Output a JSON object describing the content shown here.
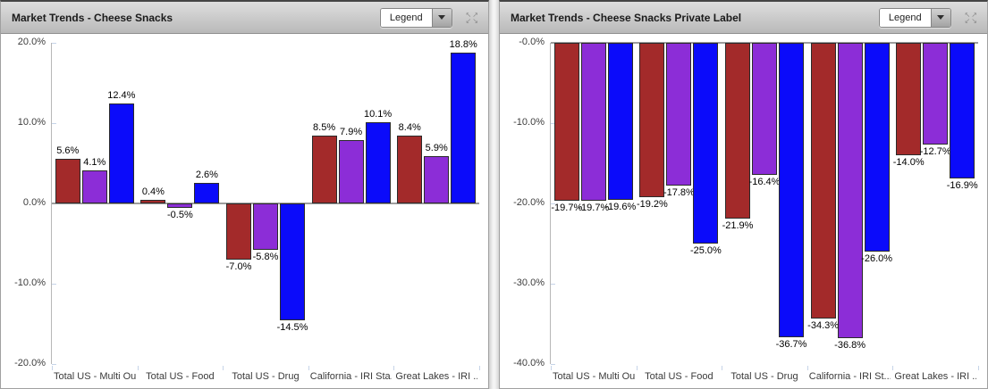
{
  "panels": [
    {
      "title": "Market Trends - Cheese Snacks",
      "legend_label": "Legend",
      "expand_icon": "expand-arrows-icon"
    },
    {
      "title": "Market Trends - Cheese Snacks Private Label",
      "legend_label": "Legend",
      "expand_icon": "expand-arrows-icon"
    }
  ],
  "colors": {
    "series_red": "#A32A2A",
    "series_purple": "#8C2DD7",
    "series_blue": "#0B0BFA",
    "bar_border": "#2b2b2b",
    "zero_line": "#9d9d9d",
    "axis": "#b7b7b7"
  },
  "chart_data": [
    {
      "type": "bar",
      "title": "Market Trends - Cheese Snacks",
      "categories": [
        "Total US - Multi Ou...",
        "Total US - Food",
        "Total US - Drug",
        "California - IRI Sta...",
        "Great Lakes - IRI ..."
      ],
      "series": [
        {
          "color": "#A32A2A",
          "values": [
            5.6,
            0.4,
            -7.0,
            8.5,
            8.4
          ]
        },
        {
          "color": "#8C2DD7",
          "values": [
            4.1,
            -0.5,
            -5.8,
            7.9,
            5.9
          ]
        },
        {
          "color": "#0B0BFA",
          "values": [
            12.4,
            2.6,
            -14.5,
            10.1,
            18.8
          ]
        }
      ],
      "ylim": [
        -20,
        20
      ],
      "yticks": [
        {
          "value": 20,
          "label": "20.0%"
        },
        {
          "value": 10,
          "label": "10.0%"
        },
        {
          "value": 0,
          "label": "0.0%"
        },
        {
          "value": -10,
          "label": "-10.0%"
        },
        {
          "value": -20,
          "label": "-20.0%"
        }
      ],
      "value_suffix": "%",
      "grid": "off",
      "legend_position": "collapsed-dropdown"
    },
    {
      "type": "bar",
      "title": "Market Trends - Cheese Snacks Private Label",
      "categories": [
        "Total US - Multi Ou...",
        "Total US - Food",
        "Total US - Drug",
        "California - IRI St...",
        "Great Lakes - IRI ..."
      ],
      "series": [
        {
          "color": "#A32A2A",
          "values": [
            -19.7,
            -19.2,
            -21.9,
            -34.3,
            -14.0
          ]
        },
        {
          "color": "#8C2DD7",
          "values": [
            -19.7,
            -17.8,
            -16.4,
            -36.8,
            -12.7
          ]
        },
        {
          "color": "#0B0BFA",
          "values": [
            -19.6,
            -25.0,
            -36.7,
            -26.0,
            -16.9
          ]
        }
      ],
      "ylim": [
        -40,
        0
      ],
      "yticks": [
        {
          "value": 0,
          "label": "-0.0%"
        },
        {
          "value": -10,
          "label": "-10.0%"
        },
        {
          "value": -20,
          "label": "-20.0%"
        },
        {
          "value": -30,
          "label": "-30.0%"
        },
        {
          "value": -40,
          "label": "-40.0%"
        }
      ],
      "value_suffix": "%",
      "grid": "off",
      "legend_position": "collapsed-dropdown"
    }
  ]
}
